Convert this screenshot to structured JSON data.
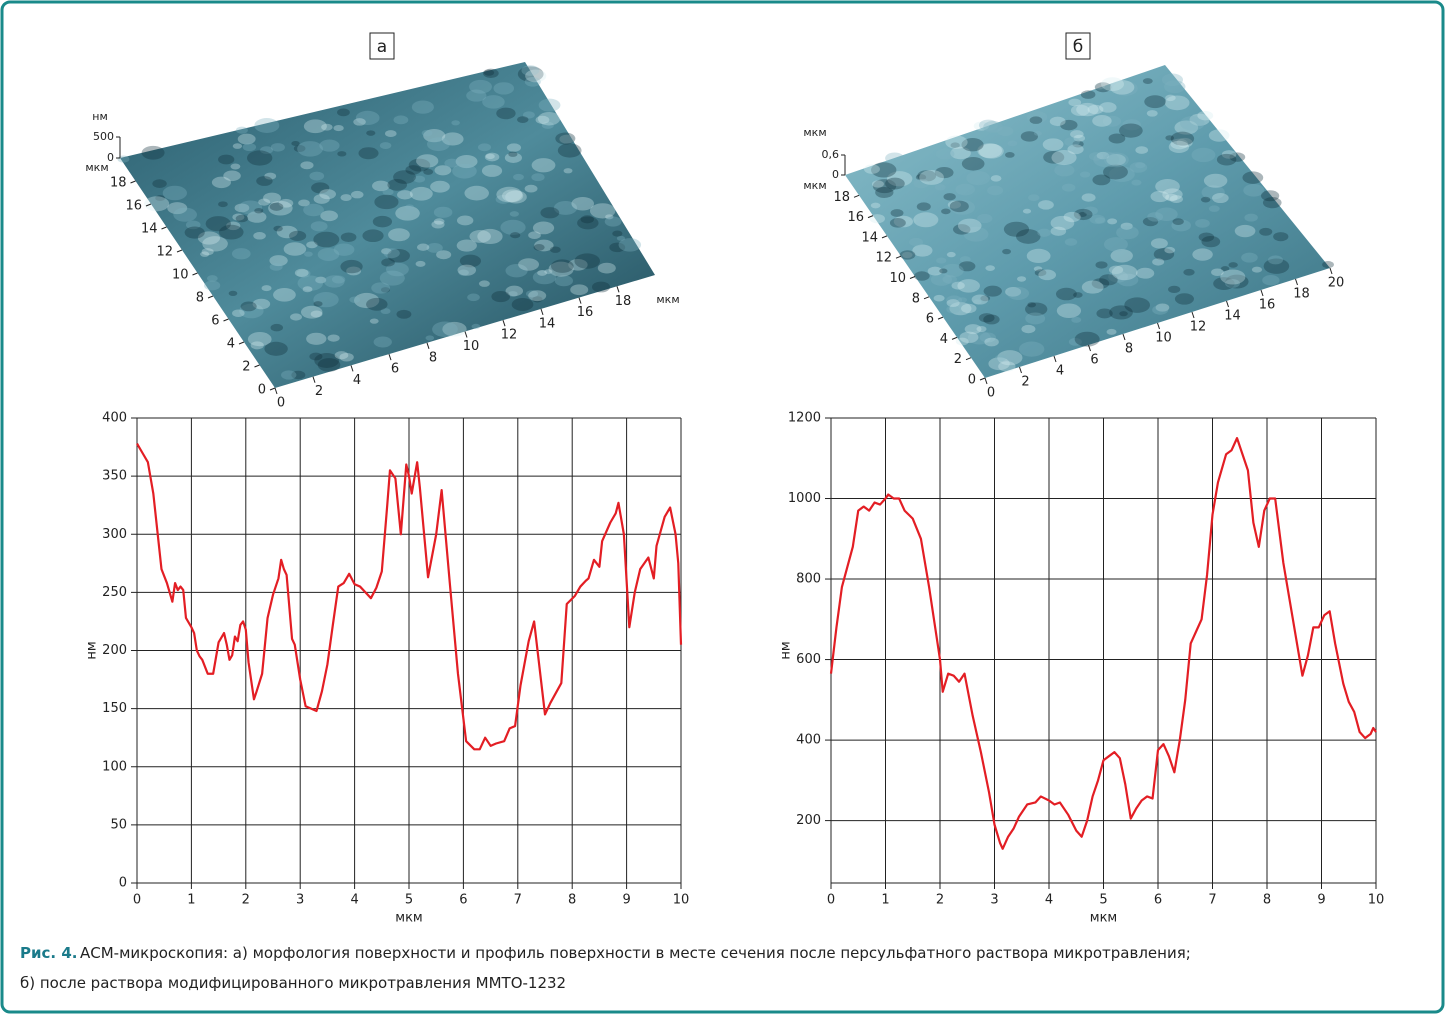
{
  "caption": {
    "label": "Рис. 4.",
    "line1": "АСМ-микроскопия: а) морфология поверхности и профиль поверхности в месте сечения после персульфатного раствора микротравления;",
    "line2": "б) после раствора модифицированного микротравления ММТО-1232"
  },
  "chart_data": [
    {
      "type": "surface",
      "panel_label": "а",
      "z_label": "нм",
      "zlim": [
        0,
        500
      ],
      "zticks": [
        0,
        500
      ],
      "y_label": "мкм",
      "ylim": [
        0,
        20
      ],
      "yticks": [
        0,
        2,
        4,
        6,
        8,
        10,
        12,
        14,
        16,
        18
      ],
      "x_label": "мкм",
      "xlim": [
        0,
        20
      ],
      "xticks": [
        0,
        2,
        4,
        6,
        8,
        10,
        12,
        14,
        16,
        18
      ]
    },
    {
      "type": "surface",
      "panel_label": "б",
      "z_label": "мкм",
      "zlim": [
        0,
        0.6
      ],
      "zticks": [
        0,
        {
          "value": 0.6,
          "label": "0,6"
        }
      ],
      "y_label": "мкм",
      "ylim": [
        0,
        20
      ],
      "yticks": [
        0,
        2,
        4,
        6,
        8,
        10,
        12,
        14,
        16,
        18
      ],
      "xlim": [
        0,
        20
      ],
      "xticks": [
        0,
        2,
        4,
        6,
        8,
        10,
        12,
        14,
        16,
        18,
        20
      ]
    },
    {
      "type": "line",
      "y_label": "нм",
      "x_label": "мкм",
      "xlim": [
        0,
        10
      ],
      "xticks": [
        0,
        1,
        2,
        3,
        4,
        5,
        6,
        7,
        8,
        9,
        10
      ],
      "ylim": [
        0,
        400
      ],
      "yticks": [
        0,
        50,
        100,
        150,
        200,
        250,
        300,
        350,
        400
      ],
      "grid": true,
      "x": [
        0,
        0.1,
        0.2,
        0.3,
        0.45,
        0.55,
        0.65,
        0.7,
        0.75,
        0.8,
        0.85,
        0.9,
        1.0,
        1.05,
        1.1,
        1.15,
        1.2,
        1.3,
        1.4,
        1.5,
        1.6,
        1.65,
        1.7,
        1.75,
        1.8,
        1.85,
        1.9,
        1.95,
        2.0,
        2.05,
        2.15,
        2.2,
        2.3,
        2.4,
        2.5,
        2.6,
        2.65,
        2.7,
        2.75,
        2.85,
        2.9,
        3.0,
        3.1,
        3.2,
        3.3,
        3.4,
        3.5,
        3.6,
        3.7,
        3.8,
        3.9,
        4.0,
        4.1,
        4.2,
        4.3,
        4.4,
        4.5,
        4.6,
        4.65,
        4.75,
        4.85,
        4.95,
        5.0,
        5.05,
        5.15,
        5.2,
        5.35,
        5.5,
        5.6,
        5.75,
        5.9,
        6.05,
        6.2,
        6.3,
        6.4,
        6.5,
        6.6,
        6.75,
        6.85,
        6.95,
        7.05,
        7.2,
        7.3,
        7.45,
        7.5,
        7.6,
        7.8,
        7.9,
        8.05,
        8.15,
        8.25,
        8.3,
        8.4,
        8.5,
        8.55,
        8.7,
        8.8,
        8.85,
        8.95,
        9.05,
        9.15,
        9.25,
        9.4,
        9.5,
        9.55,
        9.7,
        9.8,
        9.9,
        9.95,
        10.0
      ],
      "series": [
        {
          "color": "#e31e24",
          "values": [
            378,
            370,
            362,
            335,
            270,
            258,
            242,
            258,
            252,
            255,
            252,
            228,
            220,
            215,
            200,
            195,
            192,
            180,
            180,
            207,
            215,
            205,
            192,
            196,
            212,
            208,
            222,
            225,
            218,
            190,
            158,
            165,
            180,
            228,
            248,
            262,
            278,
            270,
            265,
            210,
            205,
            175,
            152,
            150,
            148,
            165,
            188,
            222,
            255,
            258,
            266,
            257,
            255,
            250,
            245,
            254,
            268,
            325,
            355,
            348,
            300,
            360,
            350,
            335,
            362,
            340,
            263,
            300,
            338,
            258,
            180,
            122,
            115,
            115,
            125,
            118,
            120,
            122,
            133,
            135,
            170,
            208,
            225,
            165,
            145,
            155,
            172,
            240,
            247,
            255,
            260,
            262,
            278,
            272,
            294,
            310,
            318,
            327,
            300,
            220,
            250,
            270,
            280,
            262,
            290,
            315,
            323,
            300,
            275,
            205
          ]
        }
      ]
    },
    {
      "type": "line",
      "y_label": "нм",
      "x_label": "мкм",
      "xlim": [
        0,
        10
      ],
      "xticks": [
        0,
        1,
        2,
        3,
        4,
        5,
        6,
        7,
        8,
        9,
        10
      ],
      "ylim": [
        45,
        1200
      ],
      "yticks": [
        200,
        400,
        600,
        800,
        1000,
        1200
      ],
      "grid": true,
      "x": [
        0,
        0.1,
        0.2,
        0.4,
        0.5,
        0.6,
        0.7,
        0.8,
        0.9,
        1.0,
        1.05,
        1.15,
        1.25,
        1.35,
        1.5,
        1.65,
        1.8,
        2.0,
        2.05,
        2.15,
        2.25,
        2.35,
        2.45,
        2.6,
        2.75,
        2.9,
        3.0,
        3.1,
        3.15,
        3.25,
        3.35,
        3.45,
        3.6,
        3.75,
        3.85,
        4.0,
        4.1,
        4.2,
        4.35,
        4.5,
        4.6,
        4.7,
        4.8,
        4.9,
        5.0,
        5.1,
        5.2,
        5.3,
        5.4,
        5.5,
        5.6,
        5.7,
        5.8,
        5.9,
        6.0,
        6.1,
        6.2,
        6.3,
        6.4,
        6.5,
        6.6,
        6.7,
        6.8,
        6.9,
        7.0,
        7.1,
        7.25,
        7.35,
        7.45,
        7.55,
        7.65,
        7.75,
        7.85,
        7.95,
        8.05,
        8.15,
        8.3,
        8.5,
        8.65,
        8.75,
        8.85,
        8.95,
        9.05,
        9.15,
        9.25,
        9.4,
        9.5,
        9.6,
        9.7,
        9.8,
        9.9,
        9.95,
        10
      ],
      "series": [
        {
          "color": "#e31e24",
          "values": [
            565,
            680,
            780,
            880,
            970,
            980,
            970,
            990,
            985,
            1000,
            1010,
            1000,
            1000,
            970,
            950,
            900,
            780,
            600,
            520,
            565,
            560,
            545,
            565,
            460,
            370,
            270,
            190,
            145,
            130,
            160,
            180,
            210,
            240,
            245,
            260,
            250,
            240,
            245,
            215,
            175,
            160,
            200,
            260,
            300,
            350,
            360,
            370,
            355,
            290,
            205,
            230,
            250,
            260,
            255,
            375,
            390,
            360,
            320,
            400,
            500,
            640,
            670,
            700,
            810,
            960,
            1040,
            1110,
            1120,
            1150,
            1110,
            1070,
            940,
            880,
            970,
            1000,
            1000,
            840,
            680,
            560,
            610,
            680,
            680,
            710,
            720,
            640,
            540,
            495,
            470,
            420,
            405,
            415,
            430,
            420
          ]
        }
      ]
    }
  ]
}
